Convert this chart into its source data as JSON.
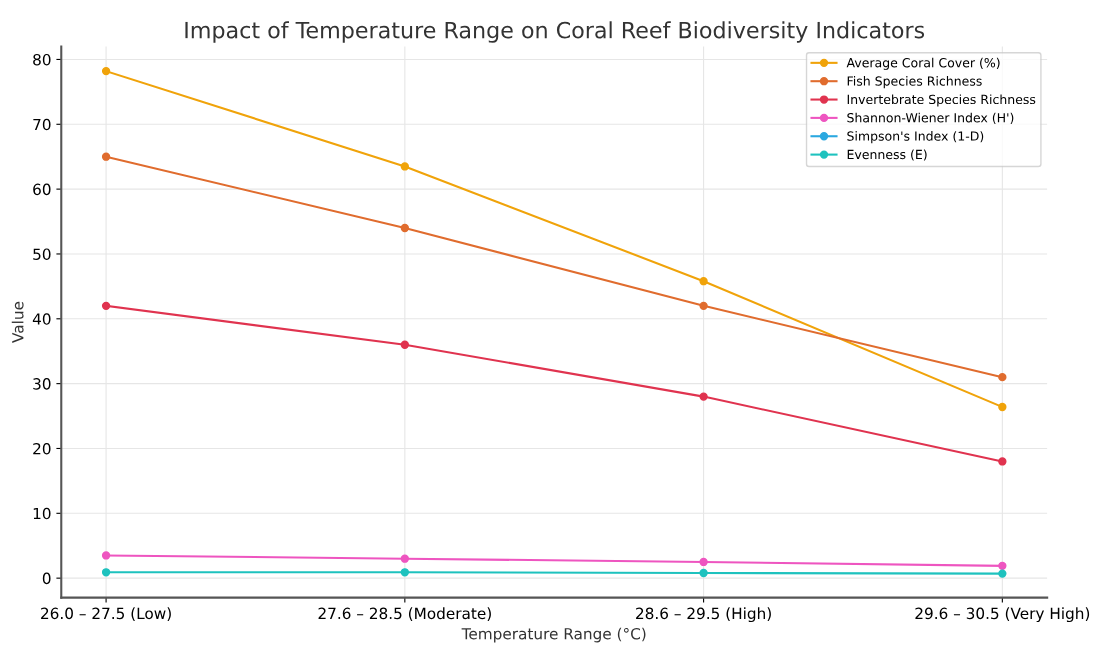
{
  "chart_data": {
    "type": "line",
    "title": "Impact of Temperature Range on Coral Reef Biodiversity Indicators",
    "xlabel": "Temperature Range (°C)",
    "ylabel": "Value",
    "categories": [
      "26.0 – 27.5 (Low)",
      "27.6 – 28.5 (Moderate)",
      "28.6 – 29.5 (High)",
      "29.6 – 30.5 (Very High)"
    ],
    "series": [
      {
        "name": "Average Coral Cover (%)",
        "color": "#f0a30a",
        "values": [
          78.2,
          63.5,
          45.8,
          26.4
        ]
      },
      {
        "name": "Fish Species Richness",
        "color": "#e06c2e",
        "values": [
          65,
          54,
          42,
          31
        ]
      },
      {
        "name": "Invertebrate Species Richness",
        "color": "#e0334f",
        "values": [
          42,
          36,
          28,
          18
        ]
      },
      {
        "name": "Shannon-Wiener Index (H')",
        "color": "#ee55c0",
        "values": [
          3.5,
          3.0,
          2.5,
          1.9
        ]
      },
      {
        "name": "Simpson's Index (1-D)",
        "color": "#2aa8e0",
        "values": [
          null,
          null,
          null,
          null
        ]
      },
      {
        "name": "Evenness (E)",
        "color": "#1ec2be",
        "values": [
          0.9,
          0.9,
          0.8,
          0.7
        ]
      }
    ],
    "ylim": [
      -3,
      82
    ],
    "yticks": [
      0,
      10,
      20,
      30,
      40,
      50,
      60,
      70,
      80
    ],
    "grid": true,
    "legend": "top right",
    "marker": "circle",
    "line_style": "solid"
  }
}
